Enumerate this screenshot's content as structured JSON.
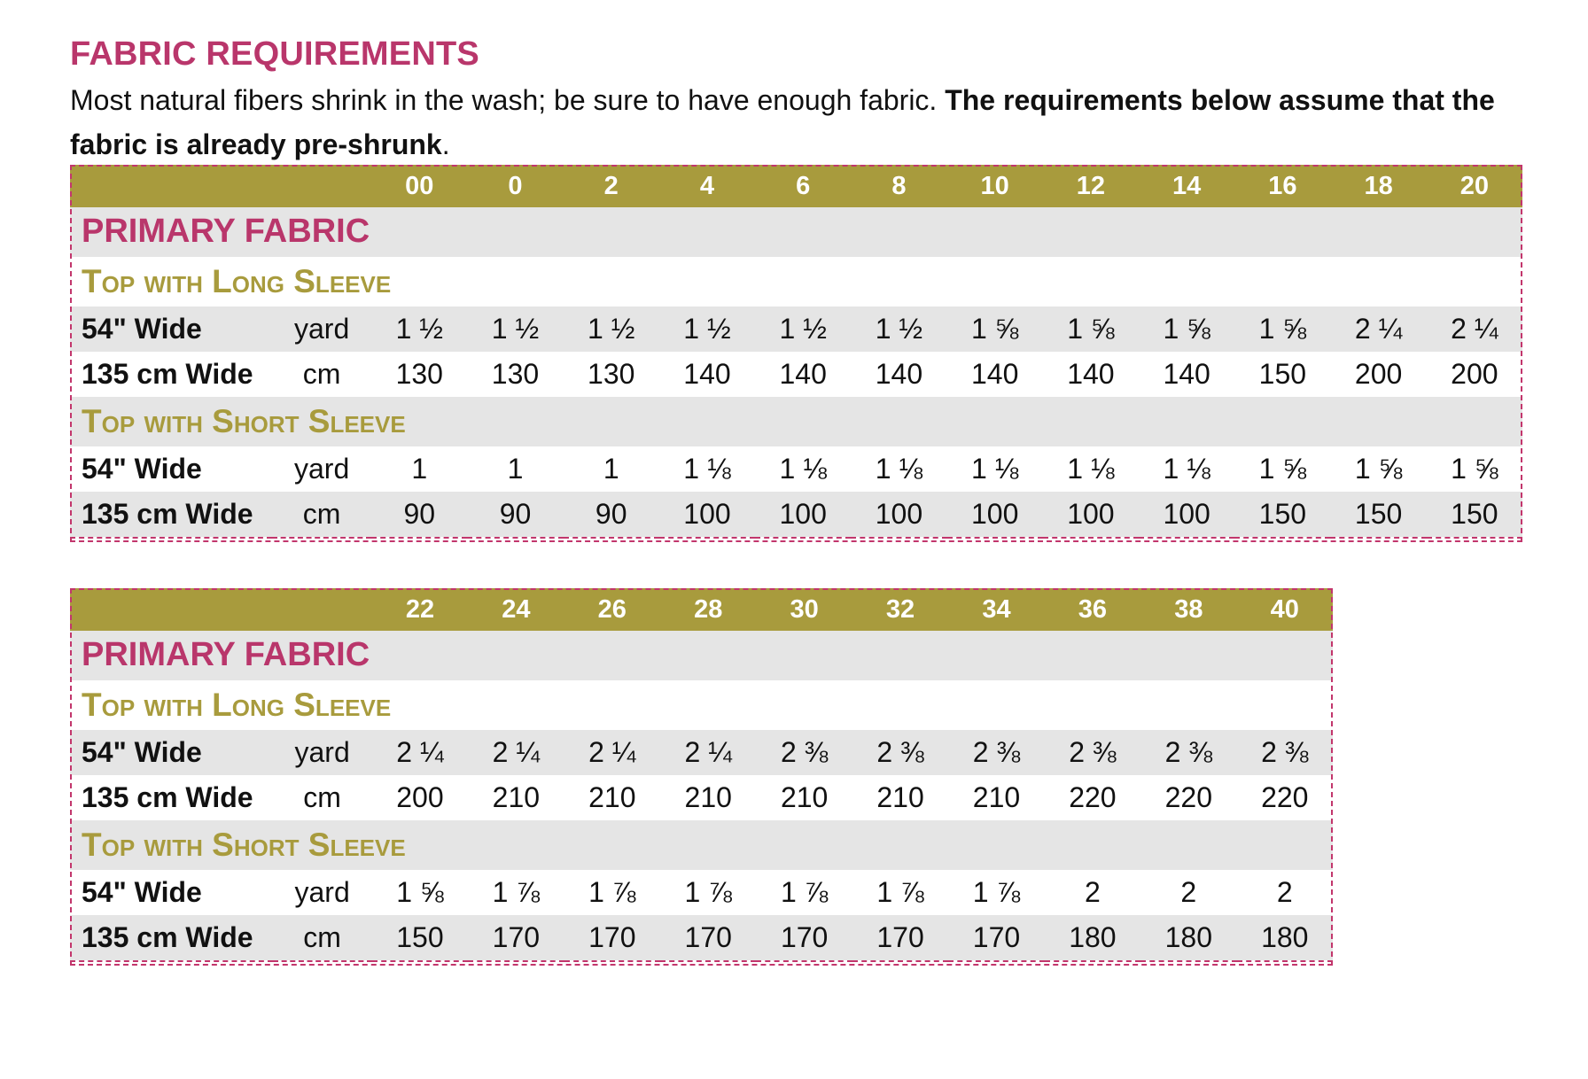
{
  "title": "FABRIC REQUIREMENTS",
  "intro": {
    "normal": "Most natural fibers shrink in the wash; be sure to have enough fabric. ",
    "bold": "The requirements below assume that the fabric is already pre-shrunk",
    "end": "."
  },
  "colors": {
    "accent_pink": "#b9366b",
    "header_olive": "#a89b3d",
    "row_grey": "#e5e5e5"
  },
  "tables": [
    {
      "sizes": [
        "00",
        "0",
        "2",
        "4",
        "6",
        "8",
        "10",
        "12",
        "14",
        "16",
        "18",
        "20"
      ],
      "primary_label": "PRIMARY FABRIC",
      "sections": [
        {
          "label": "Top with Long Sleeve",
          "rows": [
            {
              "label": "54\" Wide",
              "unit": "yard",
              "values": [
                "1 ½",
                "1 ½",
                "1 ½",
                "1 ½",
                "1 ½",
                "1 ½",
                "1 ⅝",
                "1 ⅝",
                "1 ⅝",
                "1 ⅝",
                "2 ¼",
                "2 ¼"
              ]
            },
            {
              "label": "135 cm Wide",
              "unit": "cm",
              "values": [
                "130",
                "130",
                "130",
                "140",
                "140",
                "140",
                "140",
                "140",
                "140",
                "150",
                "200",
                "200"
              ]
            }
          ]
        },
        {
          "label": "Top with Short Sleeve",
          "rows": [
            {
              "label": "54\" Wide",
              "unit": "yard",
              "values": [
                "1",
                "1",
                "1",
                "1 ⅛",
                "1 ⅛",
                "1 ⅛",
                "1 ⅛",
                "1 ⅛",
                "1 ⅛",
                "1 ⅝",
                "1 ⅝",
                "1 ⅝"
              ]
            },
            {
              "label": "135 cm Wide",
              "unit": "cm",
              "values": [
                "90",
                "90",
                "90",
                "100",
                "100",
                "100",
                "100",
                "100",
                "100",
                "150",
                "150",
                "150"
              ]
            }
          ]
        }
      ]
    },
    {
      "sizes": [
        "22",
        "24",
        "26",
        "28",
        "30",
        "32",
        "34",
        "36",
        "38",
        "40"
      ],
      "primary_label": "PRIMARY FABRIC",
      "sections": [
        {
          "label": "Top with Long Sleeve",
          "rows": [
            {
              "label": "54\" Wide",
              "unit": "yard",
              "values": [
                "2 ¼",
                "2 ¼",
                "2 ¼",
                "2 ¼",
                "2 ⅜",
                "2 ⅜",
                "2 ⅜",
                "2 ⅜",
                "2 ⅜",
                "2 ⅜"
              ]
            },
            {
              "label": "135 cm Wide",
              "unit": "cm",
              "values": [
                "200",
                "210",
                "210",
                "210",
                "210",
                "210",
                "210",
                "220",
                "220",
                "220"
              ]
            }
          ]
        },
        {
          "label": "Top with Short Sleeve",
          "rows": [
            {
              "label": "54\" Wide",
              "unit": "yard",
              "values": [
                "1 ⅝",
                "1 ⅞",
                "1 ⅞",
                "1 ⅞",
                "1 ⅞",
                "1 ⅞",
                "1 ⅞",
                "2",
                "2",
                "2"
              ]
            },
            {
              "label": "135 cm Wide",
              "unit": "cm",
              "values": [
                "150",
                "170",
                "170",
                "170",
                "170",
                "170",
                "170",
                "180",
                "180",
                "180"
              ]
            }
          ]
        }
      ]
    }
  ]
}
